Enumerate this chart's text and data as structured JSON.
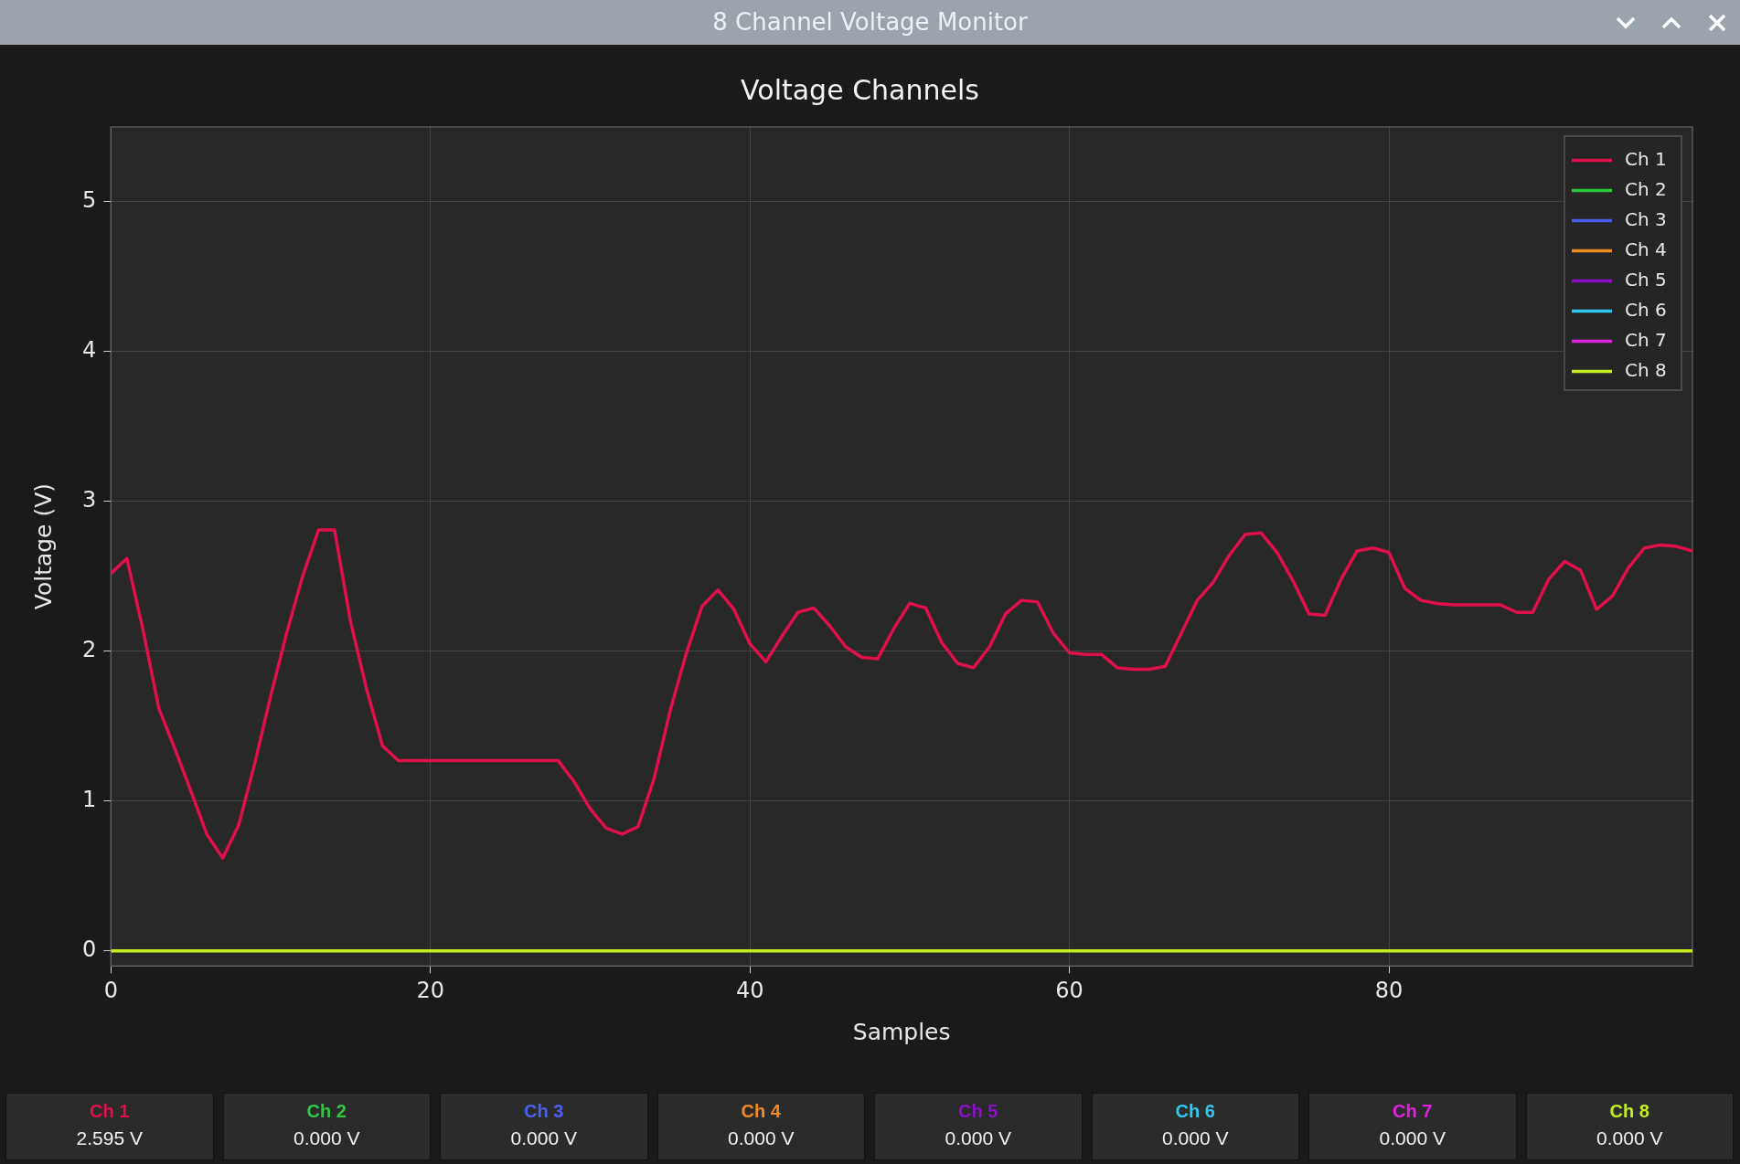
{
  "chart_data": {
    "type": "line",
    "title": "Voltage Channels",
    "xlabel": "Samples",
    "ylabel": "Voltage (V)",
    "x": [
      0,
      1,
      2,
      3,
      4,
      5,
      6,
      7,
      8,
      9,
      10,
      11,
      12,
      13,
      14,
      15,
      16,
      17,
      18,
      19,
      20,
      21,
      22,
      23,
      24,
      25,
      26,
      27,
      28,
      29,
      30,
      31,
      32,
      33,
      34,
      35,
      36,
      37,
      38,
      39,
      40,
      41,
      42,
      43,
      44,
      45,
      46,
      47,
      48,
      49,
      50,
      51,
      52,
      53,
      54,
      55,
      56,
      57,
      58,
      59,
      60,
      61,
      62,
      63,
      64,
      65,
      66,
      67,
      68,
      69,
      70,
      71,
      72,
      73,
      74,
      75,
      76,
      77,
      78,
      79,
      80,
      81,
      82,
      83,
      84,
      85,
      86,
      87,
      88,
      89,
      90,
      91,
      92,
      93,
      94,
      95,
      96,
      97,
      98,
      99
    ],
    "series": [
      {
        "name": "Ch 1",
        "color": "#e0104a",
        "values": [
          2.52,
          2.62,
          2.15,
          1.62,
          1.35,
          1.07,
          0.78,
          0.62,
          0.84,
          1.25,
          1.7,
          2.12,
          2.5,
          2.81,
          2.81,
          2.2,
          1.75,
          1.37,
          1.27,
          1.27,
          1.27,
          1.27,
          1.27,
          1.27,
          1.27,
          1.27,
          1.27,
          1.27,
          1.27,
          1.13,
          0.95,
          0.82,
          0.78,
          0.83,
          1.15,
          1.6,
          1.98,
          2.3,
          2.41,
          2.28,
          2.05,
          1.93,
          2.1,
          2.26,
          2.29,
          2.17,
          2.03,
          1.96,
          1.95,
          2.15,
          2.32,
          2.29,
          2.06,
          1.92,
          1.89,
          2.03,
          2.25,
          2.34,
          2.33,
          2.12,
          1.99,
          1.98,
          1.98,
          1.89,
          1.88,
          1.88,
          1.9,
          2.12,
          2.34,
          2.46,
          2.64,
          2.78,
          2.79,
          2.66,
          2.47,
          2.25,
          2.24,
          2.48,
          2.67,
          2.69,
          2.66,
          2.42,
          2.34,
          2.32,
          2.31,
          2.31,
          2.31,
          2.31,
          2.26,
          2.26,
          2.48,
          2.6,
          2.54,
          2.28,
          2.37,
          2.56,
          2.69,
          2.71,
          2.7,
          2.67
        ]
      },
      {
        "name": "Ch 2",
        "color": "#2ec840",
        "values": [
          null,
          null,
          null,
          null,
          null,
          null,
          null,
          null,
          null,
          null,
          null,
          null,
          null,
          null,
          null,
          null,
          null,
          null,
          null,
          null,
          null,
          null,
          null,
          null,
          null,
          null,
          null,
          null,
          null,
          null,
          null,
          null,
          null,
          null,
          null,
          null,
          null,
          null,
          null,
          null,
          null,
          null,
          null,
          null,
          null,
          null,
          null,
          null,
          null,
          null,
          null,
          null,
          null,
          null,
          null,
          null,
          null,
          null,
          null,
          null,
          null,
          null,
          null,
          null,
          null,
          null,
          null,
          null,
          null,
          null,
          null,
          null,
          null,
          null,
          null,
          null,
          null,
          null,
          null,
          null,
          null,
          null,
          null,
          null,
          null,
          null,
          null,
          null,
          null,
          null,
          null,
          null,
          null,
          null,
          null,
          null,
          null,
          null,
          null,
          null
        ]
      },
      {
        "name": "Ch 3",
        "color": "#4a5ef0",
        "values": [
          null,
          null,
          null,
          null,
          null,
          null,
          null,
          null,
          null,
          null,
          null,
          null,
          null,
          null,
          null,
          null,
          null,
          null,
          null,
          null,
          null,
          null,
          null,
          null,
          null,
          null,
          null,
          null,
          null,
          null,
          null,
          null,
          null,
          null,
          null,
          null,
          null,
          null,
          null,
          null,
          null,
          null,
          null,
          null,
          null,
          null,
          null,
          null,
          null,
          null,
          null,
          null,
          null,
          null,
          null,
          null,
          null,
          null,
          null,
          null,
          null,
          null,
          null,
          null,
          null,
          null,
          null,
          null,
          null,
          null,
          null,
          null,
          null,
          null,
          null,
          null,
          null,
          null,
          null,
          null,
          null,
          null,
          null,
          null,
          null,
          null,
          null,
          null,
          null,
          null,
          null,
          null,
          null,
          null,
          null,
          null,
          null,
          null,
          null,
          null
        ]
      },
      {
        "name": "Ch 4",
        "color": "#f08a24",
        "values": [
          null,
          null,
          null,
          null,
          null,
          null,
          null,
          null,
          null,
          null,
          null,
          null,
          null,
          null,
          null,
          null,
          null,
          null,
          null,
          null,
          null,
          null,
          null,
          null,
          null,
          null,
          null,
          null,
          null,
          null,
          null,
          null,
          null,
          null,
          null,
          null,
          null,
          null,
          null,
          null,
          null,
          null,
          null,
          null,
          null,
          null,
          null,
          null,
          null,
          null,
          null,
          null,
          null,
          null,
          null,
          null,
          null,
          null,
          null,
          null,
          null,
          null,
          null,
          null,
          null,
          null,
          null,
          null,
          null,
          null,
          null,
          null,
          null,
          null,
          null,
          null,
          null,
          null,
          null,
          null,
          null,
          null,
          null,
          null,
          null,
          null,
          null,
          null,
          null,
          null,
          null,
          null,
          null,
          null,
          null,
          null,
          null,
          null,
          null,
          null
        ]
      },
      {
        "name": "Ch 5",
        "color": "#8a10c8",
        "values": [
          null,
          null,
          null,
          null,
          null,
          null,
          null,
          null,
          null,
          null,
          null,
          null,
          null,
          null,
          null,
          null,
          null,
          null,
          null,
          null,
          null,
          null,
          null,
          null,
          null,
          null,
          null,
          null,
          null,
          null,
          null,
          null,
          null,
          null,
          null,
          null,
          null,
          null,
          null,
          null,
          null,
          null,
          null,
          null,
          null,
          null,
          null,
          null,
          null,
          null,
          null,
          null,
          null,
          null,
          null,
          null,
          null,
          null,
          null,
          null,
          null,
          null,
          null,
          null,
          null,
          null,
          null,
          null,
          null,
          null,
          null,
          null,
          null,
          null,
          null,
          null,
          null,
          null,
          null,
          null,
          null,
          null,
          null,
          null,
          null,
          null,
          null,
          null,
          null,
          null,
          null,
          null,
          null,
          null,
          null,
          null,
          null,
          null,
          null,
          null
        ]
      },
      {
        "name": "Ch 6",
        "color": "#30c8ec",
        "values": [
          null,
          null,
          null,
          null,
          null,
          null,
          null,
          null,
          null,
          null,
          null,
          null,
          null,
          null,
          null,
          null,
          null,
          null,
          null,
          null,
          null,
          null,
          null,
          null,
          null,
          null,
          null,
          null,
          null,
          null,
          null,
          null,
          null,
          null,
          null,
          null,
          null,
          null,
          null,
          null,
          null,
          null,
          null,
          null,
          null,
          null,
          null,
          null,
          null,
          null,
          null,
          null,
          null,
          null,
          null,
          null,
          null,
          null,
          null,
          null,
          null,
          null,
          null,
          null,
          null,
          null,
          null,
          null,
          null,
          null,
          null,
          null,
          null,
          null,
          null,
          null,
          null,
          null,
          null,
          null,
          null,
          null,
          null,
          null,
          null,
          null,
          null,
          null,
          null,
          null,
          null,
          null,
          null,
          null,
          null,
          null,
          null,
          null,
          null,
          null
        ]
      },
      {
        "name": "Ch 7",
        "color": "#e020e0",
        "values": [
          null,
          null,
          null,
          null,
          null,
          null,
          null,
          null,
          null,
          null,
          null,
          null,
          null,
          null,
          null,
          null,
          null,
          null,
          null,
          null,
          null,
          null,
          null,
          null,
          null,
          null,
          null,
          null,
          null,
          null,
          null,
          null,
          null,
          null,
          null,
          null,
          null,
          null,
          null,
          null,
          null,
          null,
          null,
          null,
          null,
          null,
          null,
          null,
          null,
          null,
          null,
          null,
          null,
          null,
          null,
          null,
          null,
          null,
          null,
          null,
          null,
          null,
          null,
          null,
          null,
          null,
          null,
          null,
          null,
          null,
          null,
          null,
          null,
          null,
          null,
          null,
          null,
          null,
          null,
          null,
          null,
          null,
          null,
          null,
          null,
          null,
          null,
          null,
          null,
          null,
          null,
          null,
          null,
          null,
          null,
          null,
          null,
          null,
          null,
          null
        ]
      },
      {
        "name": "Ch 8",
        "color": "#c4ee20",
        "values": [
          0,
          0,
          0,
          0,
          0,
          0,
          0,
          0,
          0,
          0,
          0,
          0,
          0,
          0,
          0,
          0,
          0,
          0,
          0,
          0,
          0,
          0,
          0,
          0,
          0,
          0,
          0,
          0,
          0,
          0,
          0,
          0,
          0,
          0,
          0,
          0,
          0,
          0,
          0,
          0,
          0,
          0,
          0,
          0,
          0,
          0,
          0,
          0,
          0,
          0,
          0,
          0,
          0,
          0,
          0,
          0,
          0,
          0,
          0,
          0,
          0,
          0,
          0,
          0,
          0,
          0,
          0,
          0,
          0,
          0,
          0,
          0,
          0,
          0,
          0,
          0,
          0,
          0,
          0,
          0,
          0,
          0,
          0,
          0,
          0,
          0,
          0,
          0,
          0,
          0,
          0,
          0,
          0,
          0,
          0,
          0,
          0,
          0,
          0,
          0
        ]
      }
    ],
    "xlim": [
      0,
      99
    ],
    "xticks": [
      0,
      20,
      40,
      60,
      80
    ],
    "ylim": [
      -0.1,
      5.5
    ],
    "yticks": [
      0,
      1,
      2,
      3,
      4,
      5
    ],
    "grid": true,
    "legend": "top right",
    "marker": "none",
    "line_style": "solid",
    "annotations": [
      "8 Channel Voltage Monitor",
      "2.595 V",
      "0.000 V",
      "0.000 V",
      "0.000 V",
      "0.000 V",
      "0.000 V",
      "0.000 V",
      "0.000 V"
    ]
  }
}
